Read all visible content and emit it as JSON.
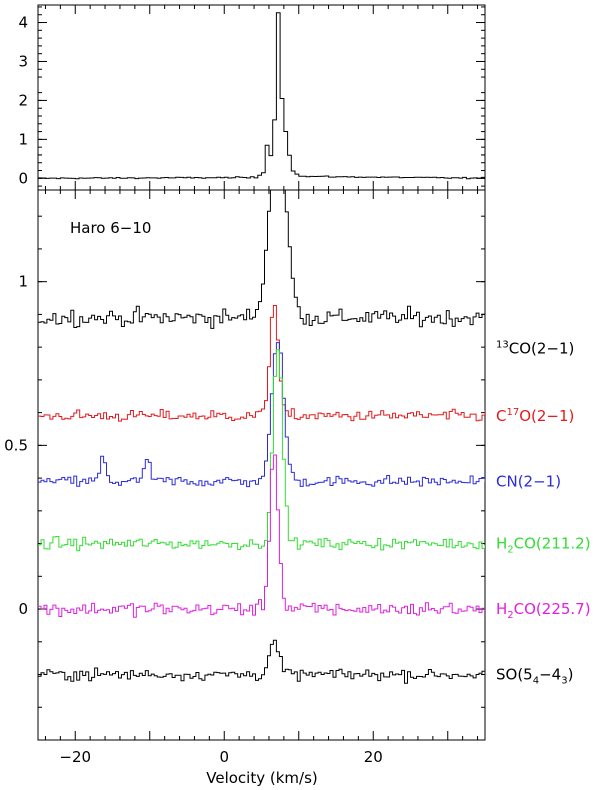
{
  "chart_data": [
    {
      "type": "line",
      "panel": "top",
      "title": "",
      "xlabel": "",
      "ylabel": "",
      "xlim": [
        -25,
        35
      ],
      "ylim": [
        -0.3,
        4.45
      ],
      "yticks": [
        0,
        1,
        2,
        3,
        4
      ],
      "grid": false,
      "series": [
        {
          "name": "",
          "color": "#000000",
          "peak": {
            "x": 7.0,
            "y": 4.25
          },
          "profile": [
            {
              "x": -25,
              "y": 0.0
            },
            {
              "x": 4.0,
              "y": 0.02
            },
            {
              "x": 5.0,
              "y": 0.15
            },
            {
              "x": 5.5,
              "y": 0.85
            },
            {
              "x": 6.0,
              "y": 0.6
            },
            {
              "x": 6.5,
              "y": 1.5
            },
            {
              "x": 7.0,
              "y": 4.25
            },
            {
              "x": 7.5,
              "y": 2.05
            },
            {
              "x": 8.0,
              "y": 1.2
            },
            {
              "x": 8.5,
              "y": 0.6
            },
            {
              "x": 9.0,
              "y": 0.2
            },
            {
              "x": 10.0,
              "y": 0.05
            },
            {
              "x": 35,
              "y": 0.0
            }
          ]
        }
      ]
    },
    {
      "type": "line",
      "panel": "bottom",
      "title": "",
      "annotation": "Haro 6−10",
      "xlabel": "Velocity (km/s)",
      "ylabel": "",
      "xlim": [
        -25,
        35
      ],
      "ylim": [
        -0.4,
        1.28
      ],
      "xticks": [
        -20,
        0,
        20
      ],
      "yticks": [
        0,
        0.5,
        1
      ],
      "grid": false,
      "series": [
        {
          "name": "¹³CO(2−1)",
          "label_base": "CO(2−1)",
          "label_pre_sup": "13",
          "color": "#000000",
          "baseline": 0.89,
          "noise": 0.018,
          "peak": {
            "x": 7.0,
            "y": 1.45
          },
          "width": 1.6
        },
        {
          "name": "C¹⁷O(2−1)",
          "label_pre": "C",
          "label_sup": "17",
          "label_post": "O(2−1)",
          "color": "#e31a1c",
          "baseline": 0.59,
          "noise": 0.012,
          "peak": {
            "x": 6.5,
            "y": 0.94
          },
          "width": 0.8
        },
        {
          "name": "CN(2−1)",
          "label": "CN(2−1)",
          "color": "#2b2bd9",
          "baseline": 0.39,
          "noise": 0.012,
          "peak": {
            "x": 7.0,
            "y": 0.83
          },
          "width": 1.1,
          "extra_peaks": [
            {
              "x": -16.5,
              "y": 0.47
            },
            {
              "x": -10.5,
              "y": 0.47
            }
          ]
        },
        {
          "name": "H₂CO(211.2)",
          "label_pre": "H",
          "label_sub": "2",
          "label_post": "CO(211.2)",
          "color": "#33dd33",
          "baseline": 0.2,
          "noise": 0.012,
          "peak": {
            "x": 7.0,
            "y": 0.8
          },
          "width": 0.9
        },
        {
          "name": "H₂CO(225.7)",
          "label_pre": "H",
          "label_sub": "2",
          "label_post": "CO(225.7)",
          "color": "#e020e0",
          "baseline": 0.0,
          "noise": 0.015,
          "peak": {
            "x": 6.5,
            "y": 0.48
          },
          "width": 0.8
        },
        {
          "name": "SO(5₄−4₃)",
          "label_pre": "SO(5",
          "label_sub": "4",
          "label_mid": "−4",
          "label_sub2": "3",
          "label_post": ")",
          "color": "#000000",
          "baseline": -0.2,
          "noise": 0.012,
          "peak": {
            "x": 6.5,
            "y": -0.1
          },
          "width": 0.9
        }
      ]
    }
  ]
}
